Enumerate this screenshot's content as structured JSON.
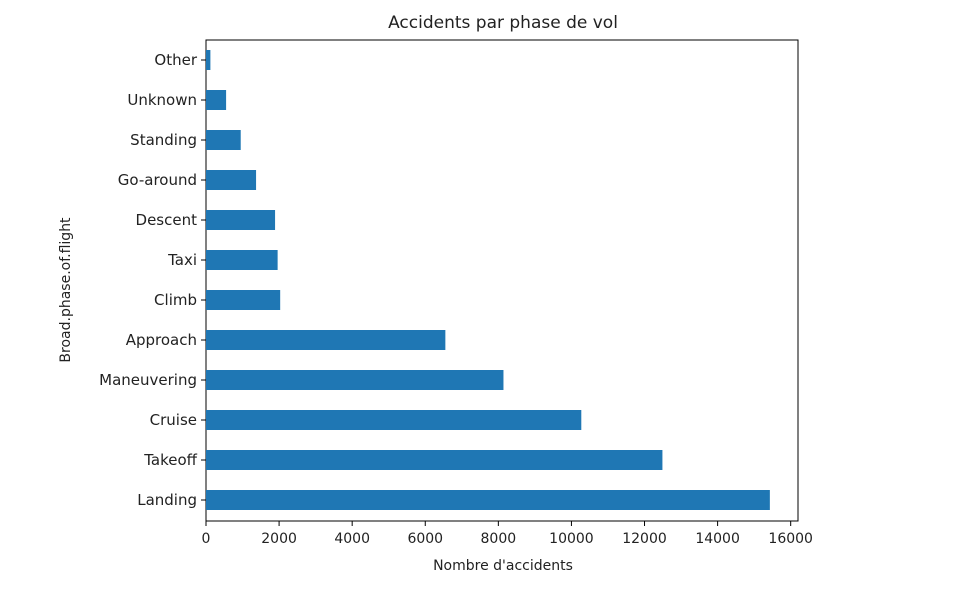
{
  "chart_data": {
    "type": "bar",
    "orientation": "horizontal",
    "title": "Accidents par phase de vol",
    "xlabel": "Nombre d'accidents",
    "ylabel": "Broad.phase.of.flight",
    "categories": [
      "Landing",
      "Takeoff",
      "Cruise",
      "Maneuvering",
      "Approach",
      "Climb",
      "Taxi",
      "Descent",
      "Go-around",
      "Standing",
      "Unknown",
      "Other"
    ],
    "values": [
      15430,
      12490,
      10270,
      8140,
      6550,
      2030,
      1960,
      1890,
      1370,
      950,
      550,
      120
    ],
    "xlim": [
      0,
      16200
    ],
    "xticks": [
      0,
      2000,
      4000,
      6000,
      8000,
      10000,
      12000,
      14000,
      16000
    ],
    "bar_color": "#1f77b4",
    "grid": false
  }
}
